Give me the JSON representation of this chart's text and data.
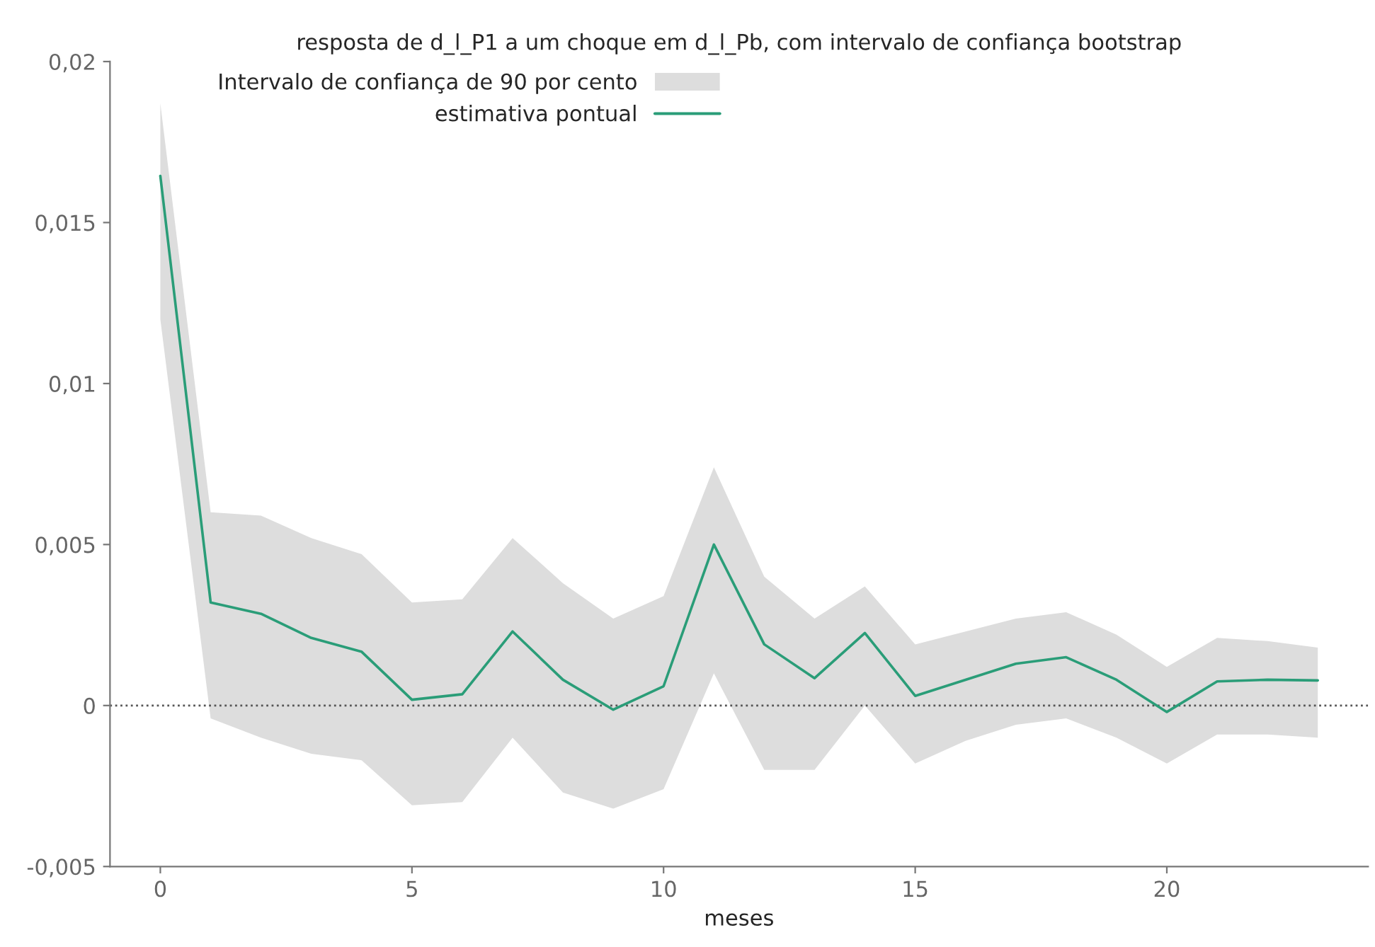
{
  "chart_data": {
    "type": "line",
    "title": "resposta de d_l_P1 a um choque em d_l_Pb, com intervalo de confiança bootstrap",
    "xlabel": "meses",
    "annotations": [
      "Intervalo de confiança de 90 por cento"
    ],
    "x": [
      0,
      1,
      2,
      3,
      4,
      5,
      6,
      7,
      8,
      9,
      10,
      11,
      12,
      13,
      14,
      15,
      16,
      17,
      18,
      19,
      20,
      21,
      22,
      23
    ],
    "series": [
      {
        "name": "estimativa pontual",
        "color": "#2a9d78",
        "values": [
          0.01645,
          0.0032,
          0.00285,
          0.0021,
          0.00167,
          0.00018,
          0.00035,
          0.0023,
          0.0008,
          -0.00013,
          0.0006,
          0.005,
          0.0019,
          0.00085,
          0.00225,
          0.0003,
          0.0008,
          0.0013,
          0.0015,
          0.0008,
          -0.0002,
          0.00075,
          0.0008,
          0.00078
        ],
        "upper": [
          0.0187,
          0.006,
          0.0059,
          0.0052,
          0.0047,
          0.0032,
          0.0033,
          0.0052,
          0.0038,
          0.0027,
          0.0034,
          0.0074,
          0.004,
          0.0027,
          0.0037,
          0.0019,
          0.0023,
          0.0027,
          0.0029,
          0.0022,
          0.0012,
          0.0021,
          0.002,
          0.0018
        ],
        "lower": [
          0.012,
          -0.0004,
          -0.001,
          -0.0015,
          -0.0017,
          -0.0031,
          -0.003,
          -0.001,
          -0.0027,
          -0.0032,
          -0.0026,
          0.001,
          -0.002,
          -0.002,
          0.0,
          -0.0018,
          -0.0011,
          -0.0006,
          -0.0004,
          -0.001,
          -0.0018,
          -0.0009,
          -0.0009,
          -0.001
        ]
      }
    ],
    "xlim": [
      -1,
      24
    ],
    "ylim": [
      -0.005,
      0.02
    ],
    "xticks": [
      0,
      5,
      10,
      15,
      20
    ],
    "yticks": [
      {
        "value": -0.005,
        "label": "-0,005"
      },
      {
        "value": 0,
        "label": "0"
      },
      {
        "value": 0.005,
        "label": "0,005"
      },
      {
        "value": 0.01,
        "label": "0,01"
      },
      {
        "value": 0.015,
        "label": "0,015"
      },
      {
        "value": 0.02,
        "label": "0,02"
      }
    ],
    "ref_lines": [
      {
        "axis": "y",
        "value": 0,
        "color": "#555555",
        "line_style": "dotted"
      }
    ],
    "grid": false,
    "legend": "top left",
    "marker": "none",
    "line_style": "solid"
  }
}
